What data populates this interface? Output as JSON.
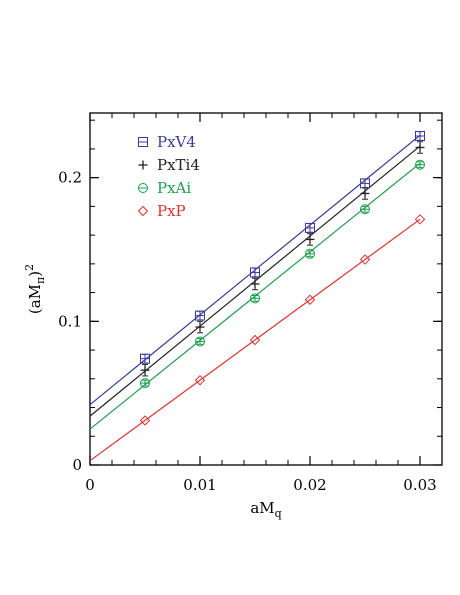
{
  "chart_data": {
    "type": "scatter",
    "xlabel_main": "aM",
    "xlabel_sub": "q",
    "ylabel_main": "(aM",
    "ylabel_sub": "π",
    "ylabel_close": ")",
    "ylabel_sup": "2",
    "xlim": [
      0,
      0.032
    ],
    "ylim": [
      0,
      0.245
    ],
    "x_ticks": [
      0,
      0.01,
      0.02,
      0.03
    ],
    "x_tick_labels": [
      "0",
      "0.01",
      "0.02",
      "0.03"
    ],
    "y_ticks": [
      0,
      0.1,
      0.2
    ],
    "y_tick_labels": [
      "0",
      "0.1",
      "0.2"
    ],
    "x_minor_step": 0.002,
    "y_minor_step": 0.02,
    "grid": false,
    "legend_position": "top-left",
    "x": [
      0.005,
      0.01,
      0.015,
      0.02,
      0.025,
      0.03
    ],
    "series": [
      {
        "name": "PxV4",
        "color": "#3a3a99",
        "marker": "square-cross",
        "values": [
          0.074,
          0.104,
          0.134,
          0.165,
          0.196,
          0.229
        ],
        "errors": [
          0.003,
          0.003,
          0.003,
          0.003,
          0.003,
          0.003
        ],
        "fit": [
          0.042,
          0.2295
        ]
      },
      {
        "name": "PxTi4",
        "color": "#222222",
        "marker": "plus",
        "values": [
          0.066,
          0.096,
          0.126,
          0.157,
          0.189,
          0.221
        ],
        "errors": [
          0.004,
          0.004,
          0.004,
          0.004,
          0.004,
          0.004
        ],
        "fit": [
          0.034,
          0.222
        ]
      },
      {
        "name": "PxAi",
        "color": "#1f9e4f",
        "marker": "circle-cross",
        "values": [
          0.057,
          0.086,
          0.116,
          0.147,
          0.178,
          0.209
        ],
        "errors": [
          0.002,
          0.002,
          0.002,
          0.002,
          0.002,
          0.002
        ],
        "fit": [
          0.025,
          0.21
        ]
      },
      {
        "name": "PxP",
        "color": "#e03030",
        "marker": "diamond",
        "values": [
          0.031,
          0.059,
          0.087,
          0.115,
          0.143,
          0.171
        ],
        "errors": [
          0,
          0,
          0,
          0,
          0,
          0
        ],
        "fit": [
          0.003,
          0.171
        ]
      }
    ]
  }
}
